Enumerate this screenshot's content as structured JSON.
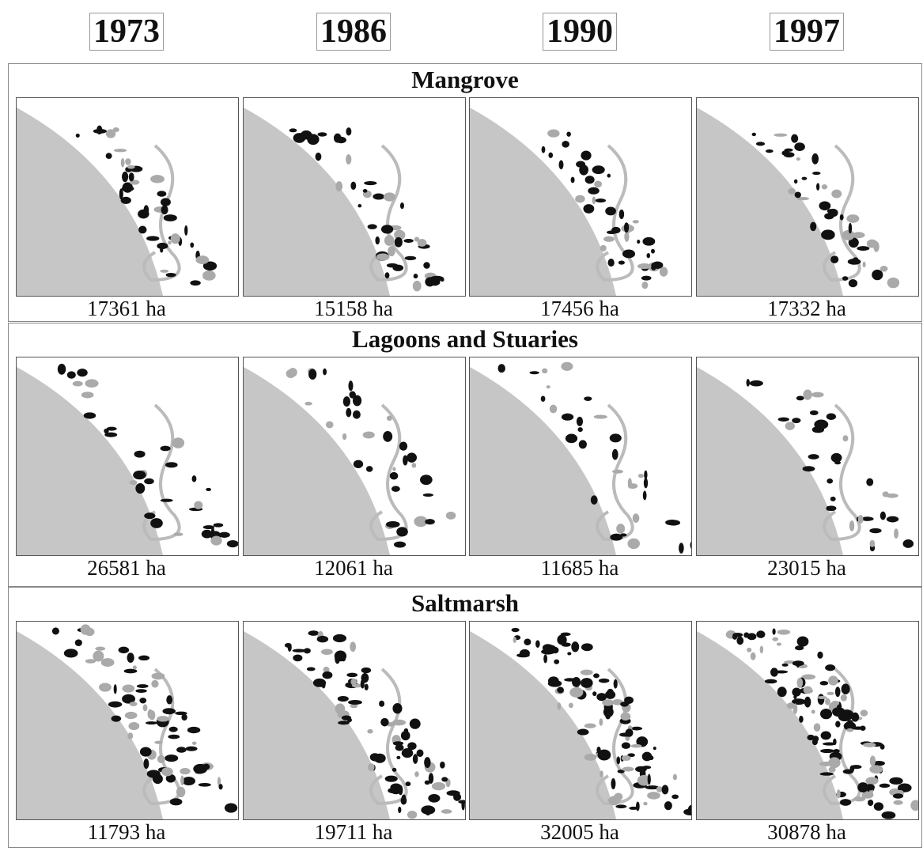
{
  "years": [
    "1973",
    "1986",
    "1990",
    "1997"
  ],
  "sections": [
    {
      "title": "Mangrove",
      "areas": [
        "17361 ha",
        "15158 ha",
        "17456 ha",
        "17332 ha"
      ]
    },
    {
      "title": "Lagoons and Stuaries",
      "areas": [
        "26581 ha",
        "12061 ha",
        "11685 ha",
        "23015 ha"
      ]
    },
    {
      "title": "Saltmarsh",
      "areas": [
        "11793 ha",
        "19711 ha",
        "32005 ha",
        "30878 ha"
      ]
    }
  ]
}
